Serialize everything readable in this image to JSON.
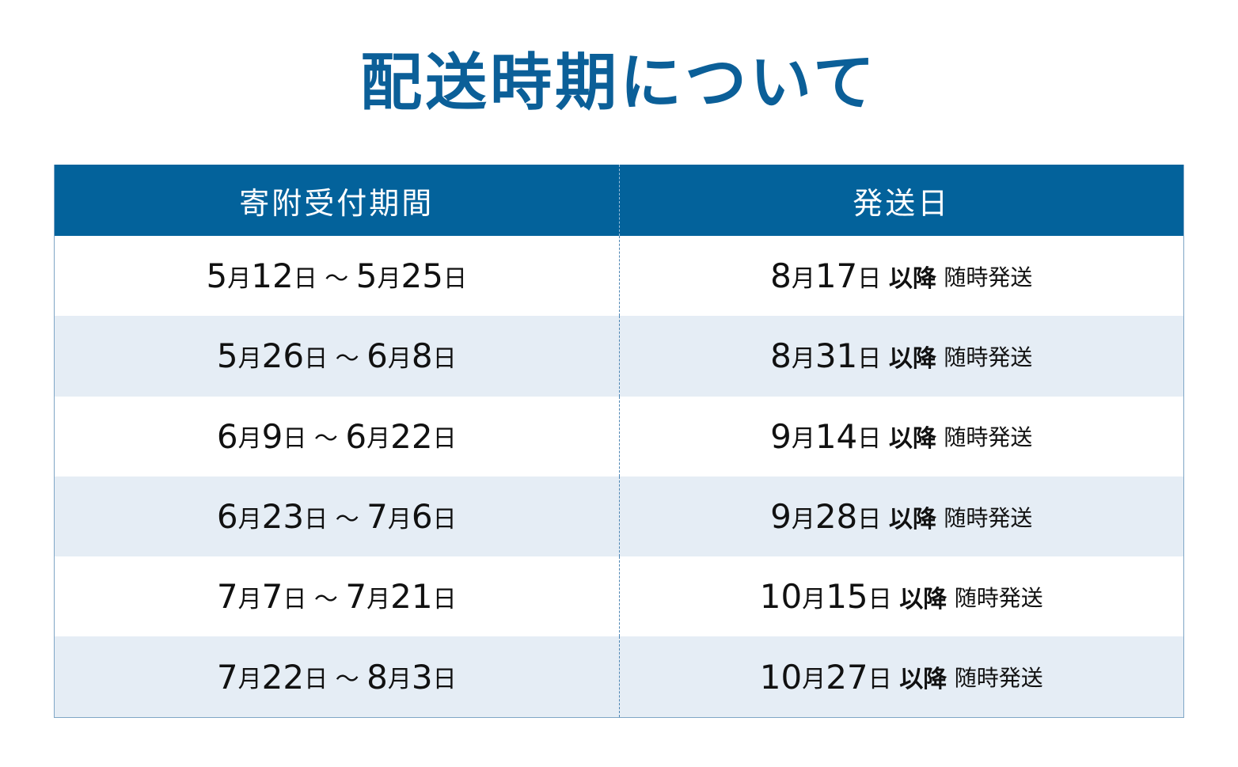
{
  "title": "配送時期について",
  "table": {
    "headers": [
      "寄附受付期間",
      "発送日"
    ],
    "rows": [
      [
        "5月12日 ～ 5月25日",
        "8月17日 以降 随時発送"
      ],
      [
        "5月26日 ～ 6月8日",
        "8月31日 以降 随時発送"
      ],
      [
        "6月9日 ～ 6月22日",
        "9月14日 以降 随時発送"
      ],
      [
        "6月23日 ～ 7月6日",
        "9月28日 以降 随時発送"
      ],
      [
        "7月7日 ～ 7月21日",
        "10月15日 以降 随時発送"
      ],
      [
        "7月22日 ～ 8月3日",
        "10月27日 以降 随時発送"
      ]
    ]
  }
}
